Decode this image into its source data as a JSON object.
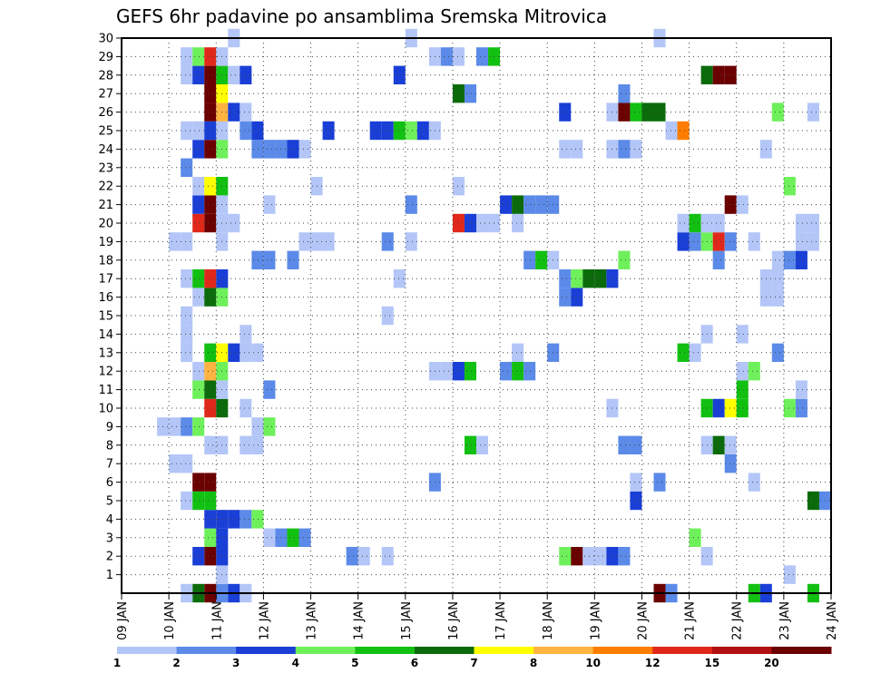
{
  "chart_data": {
    "type": "heatmap",
    "title": "GEFS 6hr padavine po ansamblima Sremska Mitrovica",
    "xlabel": "",
    "ylabel": "",
    "x_tick_labels": [
      "09 JAN",
      "10 JAN",
      "11 JAN",
      "12 JAN",
      "13 JAN",
      "14 JAN",
      "15 JAN",
      "16 JAN",
      "17 JAN",
      "18 JAN",
      "19 JAN",
      "20 JAN",
      "21 JAN",
      "22 JAN",
      "23 JAN",
      "24 JAN"
    ],
    "x_range_days": [
      9,
      24
    ],
    "steps_per_day": 4,
    "y_tick_labels": [
      "1",
      "2",
      "3",
      "4",
      "5",
      "6",
      "7",
      "8",
      "9",
      "10",
      "11",
      "12",
      "13",
      "14",
      "15",
      "16",
      "17",
      "18",
      "19",
      "20",
      "21",
      "22",
      "23",
      "24",
      "25",
      "26",
      "27",
      "28",
      "29",
      "30"
    ],
    "member_range": [
      0,
      30
    ],
    "grid": "dotted",
    "legend": {
      "placement": "bottom",
      "tick_labels": [
        "1",
        "2",
        "3",
        "4",
        "5",
        "6",
        "7",
        "8",
        "10",
        "12",
        "15",
        "20"
      ],
      "colors": [
        "#b3c6f7",
        "#5b8ae8",
        "#1a3fd6",
        "#6ef05a",
        "#12c012",
        "#0b6b0b",
        "#ffff00",
        "#ffb340",
        "#ff7d00",
        "#e0281a",
        "#b01010",
        "#6b0000"
      ]
    },
    "cells": [
      [
        0,
        11.25,
        2
      ],
      [
        0,
        11.5,
        3
      ],
      [
        0,
        11.0,
        12
      ],
      [
        0,
        10.75,
        6
      ],
      [
        0,
        10.5,
        1
      ],
      [
        0,
        11.75,
        1
      ],
      [
        0,
        20.5,
        17
      ],
      [
        0,
        20.75,
        2
      ],
      [
        0,
        22.5,
        5
      ],
      [
        0,
        22.75,
        3
      ],
      [
        0,
        23.75,
        5
      ],
      [
        1,
        11.25,
        1
      ],
      [
        1,
        23.25,
        1
      ],
      [
        2,
        11.0,
        17
      ],
      [
        2,
        11.25,
        3
      ],
      [
        2,
        10.75,
        3
      ],
      [
        2,
        14.0,
        2
      ],
      [
        2,
        14.25,
        1
      ],
      [
        2,
        14.75,
        1
      ],
      [
        2,
        18.5,
        4
      ],
      [
        2,
        18.75,
        16
      ],
      [
        2,
        19.0,
        1
      ],
      [
        2,
        19.25,
        1
      ],
      [
        2,
        19.5,
        3
      ],
      [
        2,
        19.75,
        2
      ],
      [
        2,
        21.5,
        1
      ],
      [
        3,
        11.0,
        4
      ],
      [
        3,
        11.25,
        3
      ],
      [
        3,
        12.25,
        1
      ],
      [
        3,
        12.5,
        2
      ],
      [
        3,
        12.75,
        5
      ],
      [
        3,
        13.0,
        2
      ],
      [
        3,
        21.25,
        4
      ],
      [
        4,
        11.0,
        3
      ],
      [
        4,
        11.25,
        3
      ],
      [
        4,
        11.5,
        3
      ],
      [
        4,
        11.75,
        2
      ],
      [
        4,
        12.0,
        4
      ],
      [
        5,
        10.5,
        1
      ],
      [
        5,
        10.75,
        5
      ],
      [
        5,
        11.0,
        5
      ],
      [
        5,
        20.0,
        3
      ],
      [
        5,
        23.75,
        6
      ],
      [
        5,
        24.0,
        2
      ],
      [
        6,
        10.75,
        15
      ],
      [
        6,
        11.0,
        16
      ],
      [
        6,
        15.75,
        2
      ],
      [
        6,
        20.0,
        1
      ],
      [
        6,
        20.5,
        2
      ],
      [
        6,
        22.5,
        1
      ],
      [
        7,
        10.25,
        1
      ],
      [
        7,
        10.5,
        1
      ],
      [
        7,
        22.0,
        2
      ],
      [
        8,
        11.0,
        1
      ],
      [
        8,
        11.25,
        1
      ],
      [
        8,
        11.75,
        1
      ],
      [
        8,
        12.0,
        1
      ],
      [
        8,
        16.5,
        5
      ],
      [
        8,
        16.75,
        1
      ],
      [
        8,
        19.75,
        2
      ],
      [
        8,
        20.0,
        2
      ],
      [
        8,
        21.5,
        1
      ],
      [
        8,
        21.75,
        6
      ],
      [
        8,
        22.0,
        1
      ],
      [
        9,
        10.0,
        1
      ],
      [
        9,
        10.25,
        1
      ],
      [
        9,
        10.5,
        2
      ],
      [
        9,
        10.75,
        4
      ],
      [
        9,
        12.0,
        1
      ],
      [
        9,
        12.25,
        4
      ],
      [
        10,
        11.0,
        10
      ],
      [
        10,
        11.25,
        6
      ],
      [
        10,
        11.75,
        1
      ],
      [
        10,
        19.5,
        1
      ],
      [
        10,
        21.5,
        5
      ],
      [
        10,
        21.75,
        3
      ],
      [
        10,
        22.0,
        7
      ],
      [
        10,
        22.25,
        5
      ],
      [
        10,
        23.25,
        4
      ],
      [
        10,
        23.5,
        2
      ],
      [
        11,
        10.75,
        4
      ],
      [
        11,
        11.0,
        6
      ],
      [
        11,
        11.25,
        1
      ],
      [
        11,
        12.25,
        2
      ],
      [
        11,
        22.25,
        5
      ],
      [
        11,
        23.5,
        1
      ],
      [
        12,
        10.75,
        1
      ],
      [
        12,
        11.0,
        8
      ],
      [
        12,
        11.25,
        4
      ],
      [
        12,
        15.75,
        1
      ],
      [
        12,
        16.0,
        1
      ],
      [
        12,
        16.25,
        3
      ],
      [
        12,
        16.5,
        5
      ],
      [
        12,
        17.25,
        2
      ],
      [
        12,
        17.5,
        5
      ],
      [
        12,
        17.75,
        2
      ],
      [
        12,
        22.25,
        1
      ],
      [
        12,
        22.5,
        4
      ],
      [
        13,
        10.5,
        1
      ],
      [
        13,
        11.0,
        5
      ],
      [
        13,
        11.25,
        7
      ],
      [
        13,
        11.5,
        3
      ],
      [
        13,
        11.75,
        1
      ],
      [
        13,
        12.0,
        1
      ],
      [
        13,
        17.5,
        1
      ],
      [
        13,
        18.25,
        2
      ],
      [
        13,
        21.0,
        5
      ],
      [
        13,
        21.25,
        1
      ],
      [
        13,
        23.0,
        2
      ],
      [
        14,
        10.5,
        1
      ],
      [
        14,
        11.75,
        1
      ],
      [
        14,
        21.5,
        1
      ],
      [
        14,
        22.25,
        1
      ],
      [
        15,
        10.5,
        1
      ],
      [
        15,
        14.75,
        1
      ],
      [
        16,
        10.75,
        1
      ],
      [
        16,
        11.0,
        6
      ],
      [
        16,
        11.25,
        4
      ],
      [
        16,
        18.5,
        2
      ],
      [
        16,
        18.75,
        3
      ],
      [
        16,
        22.75,
        1
      ],
      [
        16,
        23.0,
        1
      ],
      [
        17,
        10.5,
        1
      ],
      [
        17,
        10.75,
        5
      ],
      [
        17,
        11.0,
        10
      ],
      [
        17,
        11.25,
        3
      ],
      [
        17,
        15.0,
        1
      ],
      [
        17,
        18.5,
        2
      ],
      [
        17,
        18.75,
        4
      ],
      [
        17,
        19.0,
        6
      ],
      [
        17,
        19.25,
        6
      ],
      [
        17,
        19.5,
        3
      ],
      [
        17,
        22.75,
        1
      ],
      [
        17,
        23.0,
        1
      ],
      [
        18,
        12.0,
        2
      ],
      [
        18,
        12.25,
        2
      ],
      [
        18,
        12.75,
        2
      ],
      [
        18,
        17.75,
        2
      ],
      [
        18,
        18.0,
        5
      ],
      [
        18,
        18.25,
        1
      ],
      [
        18,
        19.75,
        4
      ],
      [
        18,
        21.75,
        2
      ],
      [
        18,
        23.0,
        1
      ],
      [
        18,
        23.25,
        2
      ],
      [
        18,
        23.5,
        3
      ],
      [
        19,
        10.25,
        1
      ],
      [
        19,
        10.5,
        1
      ],
      [
        19,
        11.25,
        1
      ],
      [
        19,
        13.0,
        1
      ],
      [
        19,
        13.25,
        1
      ],
      [
        19,
        13.5,
        1
      ],
      [
        19,
        14.75,
        2
      ],
      [
        19,
        15.25,
        1
      ],
      [
        19,
        21.0,
        3
      ],
      [
        19,
        21.25,
        2
      ],
      [
        19,
        21.5,
        4
      ],
      [
        19,
        21.75,
        10
      ],
      [
        19,
        22.0,
        2
      ],
      [
        19,
        22.5,
        1
      ],
      [
        19,
        23.5,
        1
      ],
      [
        19,
        23.75,
        1
      ],
      [
        20,
        10.75,
        10
      ],
      [
        20,
        11.0,
        17
      ],
      [
        20,
        11.25,
        1
      ],
      [
        20,
        11.5,
        1
      ],
      [
        20,
        16.25,
        10
      ],
      [
        20,
        16.5,
        3
      ],
      [
        20,
        16.75,
        1
      ],
      [
        20,
        17.0,
        1
      ],
      [
        20,
        17.5,
        1
      ],
      [
        20,
        21.0,
        1
      ],
      [
        20,
        21.25,
        5
      ],
      [
        20,
        21.5,
        1
      ],
      [
        20,
        21.75,
        1
      ],
      [
        20,
        23.5,
        1
      ],
      [
        20,
        23.75,
        1
      ],
      [
        21,
        10.75,
        3
      ],
      [
        21,
        11.0,
        15
      ],
      [
        21,
        11.25,
        1
      ],
      [
        21,
        12.25,
        1
      ],
      [
        21,
        15.25,
        2
      ],
      [
        21,
        17.25,
        3
      ],
      [
        21,
        17.5,
        6
      ],
      [
        21,
        17.75,
        2
      ],
      [
        21,
        18.0,
        2
      ],
      [
        21,
        18.25,
        2
      ],
      [
        21,
        22.0,
        15
      ],
      [
        21,
        22.25,
        1
      ],
      [
        22,
        10.75,
        1
      ],
      [
        22,
        11.0,
        7
      ],
      [
        22,
        11.25,
        5
      ],
      [
        22,
        13.25,
        1
      ],
      [
        22,
        16.25,
        1
      ],
      [
        22,
        23.25,
        4
      ],
      [
        23,
        10.5,
        2
      ],
      [
        24,
        10.75,
        3
      ],
      [
        24,
        11.0,
        15
      ],
      [
        24,
        11.25,
        4
      ],
      [
        24,
        12.0,
        2
      ],
      [
        24,
        12.25,
        2
      ],
      [
        24,
        12.5,
        2
      ],
      [
        24,
        12.75,
        3
      ],
      [
        24,
        13.0,
        1
      ],
      [
        24,
        18.5,
        1
      ],
      [
        24,
        18.75,
        1
      ],
      [
        24,
        19.5,
        1
      ],
      [
        24,
        19.75,
        2
      ],
      [
        24,
        20.0,
        1
      ],
      [
        24,
        22.75,
        1
      ],
      [
        25,
        10.5,
        1
      ],
      [
        25,
        10.75,
        1
      ],
      [
        25,
        11.0,
        3
      ],
      [
        25,
        11.25,
        1
      ],
      [
        25,
        11.75,
        2
      ],
      [
        25,
        12.0,
        3
      ],
      [
        25,
        13.5,
        3
      ],
      [
        25,
        14.5,
        3
      ],
      [
        25,
        14.75,
        3
      ],
      [
        25,
        15.0,
        5
      ],
      [
        25,
        15.25,
        4
      ],
      [
        25,
        15.5,
        3
      ],
      [
        25,
        15.75,
        1
      ],
      [
        25,
        20.75,
        1
      ],
      [
        25,
        21.0,
        9
      ],
      [
        26,
        11.0,
        15
      ],
      [
        26,
        11.25,
        8
      ],
      [
        26,
        11.5,
        3
      ],
      [
        26,
        11.75,
        1
      ],
      [
        26,
        18.5,
        3
      ],
      [
        26,
        19.5,
        1
      ],
      [
        26,
        19.75,
        12
      ],
      [
        26,
        20.0,
        5
      ],
      [
        26,
        20.25,
        6
      ],
      [
        26,
        20.5,
        6
      ],
      [
        26,
        23.0,
        4
      ],
      [
        26,
        23.75,
        1
      ],
      [
        27,
        11.0,
        16
      ],
      [
        27,
        11.25,
        7
      ],
      [
        27,
        16.25,
        6
      ],
      [
        27,
        16.5,
        2
      ],
      [
        27,
        19.75,
        2
      ],
      [
        28,
        10.5,
        1
      ],
      [
        28,
        10.75,
        3
      ],
      [
        28,
        11.0,
        15
      ],
      [
        28,
        11.25,
        5
      ],
      [
        28,
        11.5,
        1
      ],
      [
        28,
        11.75,
        3
      ],
      [
        28,
        15.0,
        3
      ],
      [
        28,
        21.5,
        6
      ],
      [
        28,
        21.75,
        12
      ],
      [
        28,
        22.0,
        12
      ],
      [
        29,
        10.5,
        1
      ],
      [
        29,
        10.75,
        4
      ],
      [
        29,
        11.0,
        10
      ],
      [
        29,
        11.25,
        1
      ],
      [
        29,
        15.75,
        1
      ],
      [
        29,
        16.0,
        2
      ],
      [
        29,
        16.25,
        1
      ],
      [
        29,
        16.75,
        2
      ],
      [
        29,
        17.0,
        5
      ],
      [
        30,
        11.5,
        1
      ],
      [
        30,
        15.25,
        1
      ],
      [
        30,
        20.5,
        1
      ]
    ]
  }
}
